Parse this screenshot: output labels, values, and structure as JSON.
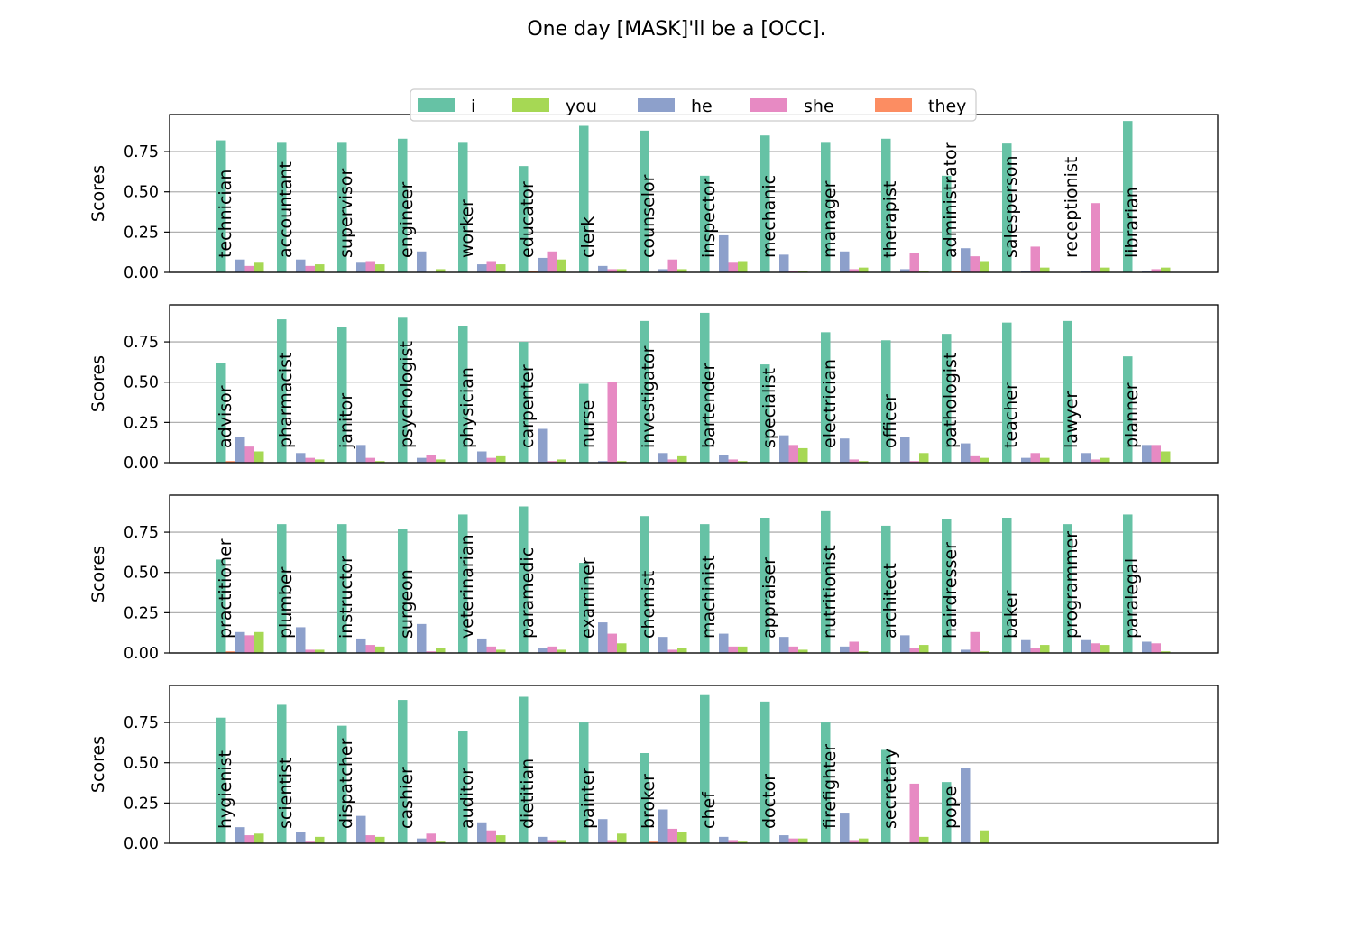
{
  "title": "One day [MASK]'ll be a [OCC].",
  "legend": {
    "placement": "top-center",
    "entries": [
      {
        "name": "i",
        "color": "#66c2a5"
      },
      {
        "name": "you",
        "color": "#a6d854"
      },
      {
        "name": "he",
        "color": "#8da0cb"
      },
      {
        "name": "she",
        "color": "#e78ac3"
      },
      {
        "name": "they",
        "color": "#fc8d62"
      }
    ]
  },
  "chart_data": [
    {
      "type": "bar",
      "ylabel": "Scores",
      "ylim": [
        0,
        0.98
      ],
      "yticks": [
        "0.00",
        "0.25",
        "0.50",
        "0.75"
      ],
      "grid": true,
      "bar_order": [
        "i",
        "they",
        "he",
        "she",
        "you"
      ],
      "categories": [
        "technician",
        "accountant",
        "supervisor",
        "engineer",
        "worker",
        "educator",
        "clerk",
        "counselor",
        "inspector",
        "mechanic",
        "manager",
        "therapist",
        "administrator",
        "salesperson",
        "receptionist",
        "librarian"
      ],
      "series": [
        {
          "name": "i",
          "values": [
            0.82,
            0.81,
            0.81,
            0.83,
            0.81,
            0.66,
            0.91,
            0.88,
            0.6,
            0.85,
            0.81,
            0.83,
            0.6,
            0.8,
            0.0,
            0.94
          ]
        },
        {
          "name": "they",
          "values": [
            0.0,
            0.0,
            0.0,
            0.0,
            0.0,
            0.01,
            0.0,
            0.0,
            0.0,
            0.0,
            0.0,
            0.0,
            0.01,
            0.0,
            0.0,
            0.0
          ]
        },
        {
          "name": "he",
          "values": [
            0.08,
            0.08,
            0.06,
            0.13,
            0.05,
            0.09,
            0.04,
            0.02,
            0.23,
            0.11,
            0.13,
            0.02,
            0.15,
            0.01,
            0.01,
            0.01
          ]
        },
        {
          "name": "she",
          "values": [
            0.04,
            0.04,
            0.07,
            0.0,
            0.07,
            0.13,
            0.02,
            0.08,
            0.06,
            0.01,
            0.02,
            0.12,
            0.1,
            0.16,
            0.43,
            0.02
          ]
        },
        {
          "name": "you",
          "values": [
            0.06,
            0.05,
            0.05,
            0.02,
            0.05,
            0.08,
            0.02,
            0.02,
            0.07,
            0.01,
            0.03,
            0.01,
            0.07,
            0.03,
            0.03,
            0.03
          ]
        }
      ]
    },
    {
      "type": "bar",
      "ylabel": "Scores",
      "ylim": [
        0,
        0.98
      ],
      "yticks": [
        "0.00",
        "0.25",
        "0.50",
        "0.75"
      ],
      "grid": true,
      "bar_order": [
        "i",
        "they",
        "he",
        "she",
        "you"
      ],
      "categories": [
        "advisor",
        "pharmacist",
        "janitor",
        "psychologist",
        "physician",
        "carpenter",
        "nurse",
        "investigator",
        "bartender",
        "specialist",
        "electrician",
        "officer",
        "pathologist",
        "teacher",
        "lawyer",
        "planner"
      ],
      "series": [
        {
          "name": "i",
          "values": [
            0.62,
            0.89,
            0.84,
            0.9,
            0.85,
            0.75,
            0.49,
            0.88,
            0.93,
            0.61,
            0.81,
            0.76,
            0.8,
            0.87,
            0.88,
            0.66
          ]
        },
        {
          "name": "they",
          "values": [
            0.01,
            0.0,
            0.0,
            0.0,
            0.0,
            0.0,
            0.0,
            0.0,
            0.0,
            0.0,
            0.0,
            0.0,
            0.0,
            0.0,
            0.0,
            0.0
          ]
        },
        {
          "name": "he",
          "values": [
            0.16,
            0.06,
            0.11,
            0.03,
            0.07,
            0.21,
            0.01,
            0.06,
            0.05,
            0.17,
            0.15,
            0.16,
            0.12,
            0.03,
            0.06,
            0.11
          ]
        },
        {
          "name": "she",
          "values": [
            0.1,
            0.03,
            0.03,
            0.05,
            0.03,
            0.01,
            0.5,
            0.02,
            0.02,
            0.11,
            0.02,
            0.01,
            0.04,
            0.06,
            0.02,
            0.11
          ]
        },
        {
          "name": "you",
          "values": [
            0.07,
            0.02,
            0.01,
            0.02,
            0.04,
            0.02,
            0.01,
            0.04,
            0.01,
            0.09,
            0.01,
            0.06,
            0.03,
            0.03,
            0.03,
            0.07
          ]
        }
      ]
    },
    {
      "type": "bar",
      "ylabel": "Scores",
      "ylim": [
        0,
        0.98
      ],
      "yticks": [
        "0.00",
        "0.25",
        "0.50",
        "0.75"
      ],
      "grid": true,
      "bar_order": [
        "i",
        "they",
        "he",
        "she",
        "you"
      ],
      "categories": [
        "practitioner",
        "plumber",
        "instructor",
        "surgeon",
        "veterinarian",
        "paramedic",
        "examiner",
        "chemist",
        "machinist",
        "appraiser",
        "nutritionist",
        "architect",
        "hairdresser",
        "baker",
        "programmer",
        "paralegal"
      ],
      "series": [
        {
          "name": "i",
          "values": [
            0.58,
            0.8,
            0.8,
            0.77,
            0.86,
            0.91,
            0.56,
            0.85,
            0.8,
            0.84,
            0.88,
            0.79,
            0.83,
            0.84,
            0.8,
            0.86
          ]
        },
        {
          "name": "they",
          "values": [
            0.01,
            0.0,
            0.0,
            0.0,
            0.0,
            0.0,
            0.0,
            0.0,
            0.0,
            0.0,
            0.0,
            0.0,
            0.0,
            0.0,
            0.0,
            0.0
          ]
        },
        {
          "name": "he",
          "values": [
            0.13,
            0.16,
            0.09,
            0.18,
            0.09,
            0.03,
            0.19,
            0.1,
            0.12,
            0.1,
            0.04,
            0.11,
            0.02,
            0.08,
            0.08,
            0.07
          ]
        },
        {
          "name": "she",
          "values": [
            0.11,
            0.02,
            0.05,
            0.01,
            0.04,
            0.04,
            0.12,
            0.02,
            0.04,
            0.04,
            0.07,
            0.03,
            0.13,
            0.03,
            0.06,
            0.06
          ]
        },
        {
          "name": "you",
          "values": [
            0.13,
            0.02,
            0.04,
            0.03,
            0.02,
            0.02,
            0.06,
            0.03,
            0.04,
            0.02,
            0.01,
            0.05,
            0.01,
            0.05,
            0.05,
            0.01
          ]
        }
      ]
    },
    {
      "type": "bar",
      "ylabel": "Scores",
      "ylim": [
        0,
        0.98
      ],
      "yticks": [
        "0.00",
        "0.25",
        "0.50",
        "0.75"
      ],
      "grid": true,
      "bar_order": [
        "i",
        "they",
        "he",
        "she",
        "you"
      ],
      "categories": [
        "hygienist",
        "scientist",
        "dispatcher",
        "cashier",
        "auditor",
        "dietitian",
        "painter",
        "broker",
        "chef",
        "doctor",
        "firefighter",
        "secretary",
        "pope"
      ],
      "series": [
        {
          "name": "i",
          "values": [
            0.78,
            0.86,
            0.73,
            0.89,
            0.7,
            0.91,
            0.75,
            0.56,
            0.92,
            0.88,
            0.75,
            0.58,
            0.38
          ]
        },
        {
          "name": "they",
          "values": [
            0.0,
            0.0,
            0.0,
            0.0,
            0.0,
            0.0,
            0.0,
            0.01,
            0.0,
            0.0,
            0.0,
            0.0,
            0.0
          ]
        },
        {
          "name": "he",
          "values": [
            0.1,
            0.07,
            0.17,
            0.03,
            0.13,
            0.04,
            0.15,
            0.21,
            0.04,
            0.05,
            0.19,
            0.0,
            0.47
          ]
        },
        {
          "name": "she",
          "values": [
            0.05,
            0.01,
            0.05,
            0.06,
            0.08,
            0.02,
            0.02,
            0.09,
            0.02,
            0.03,
            0.02,
            0.37,
            0.0
          ]
        },
        {
          "name": "you",
          "values": [
            0.06,
            0.04,
            0.04,
            0.01,
            0.05,
            0.02,
            0.06,
            0.07,
            0.01,
            0.03,
            0.03,
            0.04,
            0.08
          ]
        }
      ]
    }
  ]
}
